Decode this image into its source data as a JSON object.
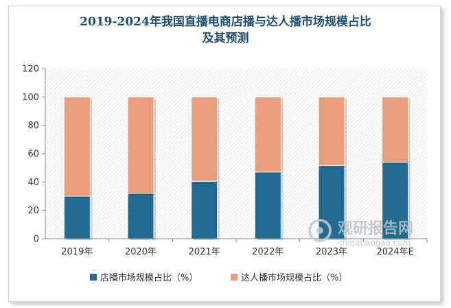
{
  "chart_data": {
    "type": "bar",
    "stacked": true,
    "title_line1": "2019-2024年我国直播电商店播与达人播市场规模占比",
    "title_line2": "及其预测",
    "categories": [
      "2019年",
      "2020年",
      "2021年",
      "2022年",
      "2023年",
      "2024年E"
    ],
    "series": [
      {
        "name": "店播市场规模占比（%）",
        "color": "#1f6b91",
        "values": [
          30,
          32,
          40.5,
          47,
          51.5,
          54
        ]
      },
      {
        "name": "达人播市场规模占比（%）",
        "color": "#e99d7a",
        "values": [
          70,
          68,
          59.5,
          53,
          48.5,
          46
        ]
      }
    ],
    "ylim": [
      0,
      120
    ],
    "yticks": [
      "0",
      "20",
      "40",
      "60",
      "80",
      "100",
      "120"
    ],
    "grid": false,
    "legend_position": "bottom"
  },
  "watermark": {
    "name": "观研报告网",
    "url": "chinabaogao.com"
  }
}
